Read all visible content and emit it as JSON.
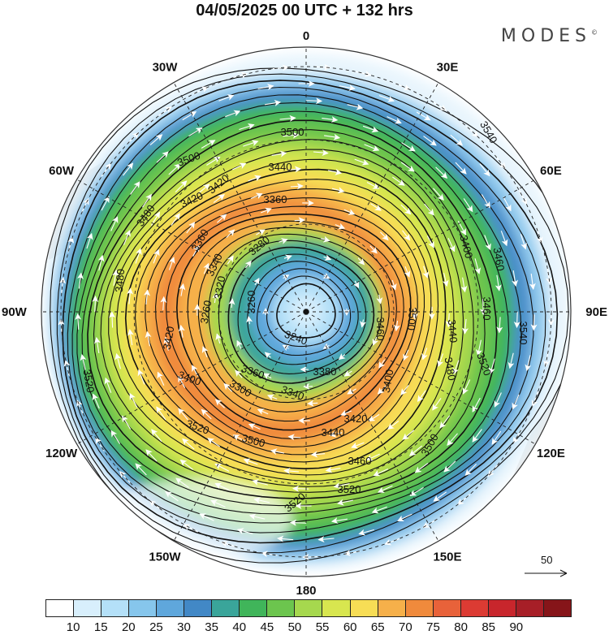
{
  "header": {
    "title": "04/05/2025  00 UTC  + 132 hrs",
    "brand": "MODES",
    "brand_mark": "©"
  },
  "map": {
    "projection": "south-polar-stereographic",
    "longitude_labels": [
      "0",
      "30E",
      "60E",
      "90E",
      "120E",
      "150E",
      "180",
      "150W",
      "120W",
      "90W",
      "60W",
      "30W"
    ],
    "contour_labels": [
      "3540",
      "3500",
      "3500",
      "3480",
      "3480",
      "3460",
      "3440",
      "3420",
      "3360",
      "3360",
      "3340",
      "3320",
      "3280",
      "3260",
      "3260",
      "3240",
      "3400",
      "3420",
      "3460",
      "3460",
      "3500",
      "3440",
      "3360",
      "3500",
      "3540",
      "3480",
      "3300",
      "3340",
      "3380",
      "3440",
      "3420",
      "3400",
      "3460",
      "3500",
      "3520",
      "3520",
      "3520",
      "3520",
      "3420",
      "3400",
      "3520"
    ],
    "contour_interval": 20,
    "field": "wind speed (shaded) and geopotential height (contours)"
  },
  "colorbar": {
    "colors": [
      "#ffffff",
      "#d8effc",
      "#b4e0f8",
      "#86c6ec",
      "#5fa7dc",
      "#4288c6",
      "#3aa59a",
      "#40b55a",
      "#6cc54e",
      "#a6d84e",
      "#d8e64f",
      "#f7dd55",
      "#f6b04a",
      "#f08a3c",
      "#e8623a",
      "#dc3b33",
      "#c8262c",
      "#a71f27",
      "#861519"
    ],
    "labels": [
      "10",
      "15",
      "20",
      "25",
      "30",
      "35",
      "40",
      "45",
      "50",
      "55",
      "60",
      "65",
      "70",
      "75",
      "80",
      "85",
      "90"
    ]
  },
  "vector_key": {
    "label": "50"
  }
}
